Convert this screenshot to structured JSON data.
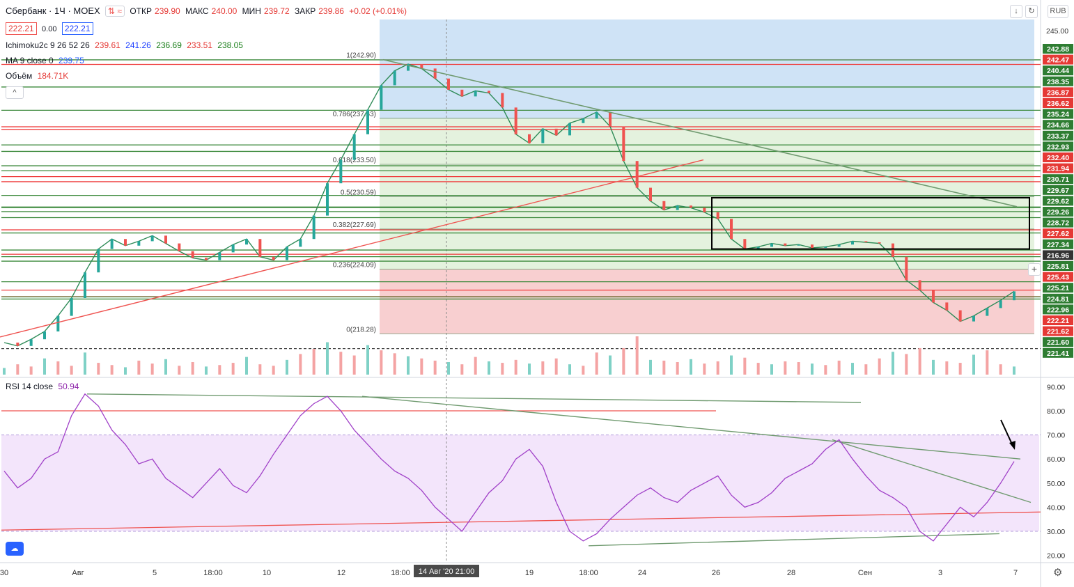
{
  "header": {
    "symbol": "Сбербанк · 1Ч · MOEX",
    "open_label": "ОТКР",
    "open": "239.90",
    "high_label": "МАКС",
    "high": "240.00",
    "low_label": "МИН",
    "low": "239.72",
    "close_label": "ЗАКР",
    "close": "239.86",
    "change": "+0.02 (+0.01%)",
    "bid": "222.21",
    "spread": "0.00",
    "ask": "222.21",
    "currency": "RUB"
  },
  "indicators": {
    "ichimoku_label": "Ichimoku2c 9 26 52 26",
    "ichimoku_values": [
      "239.61",
      "241.26",
      "236.69",
      "233.51",
      "238.05"
    ],
    "ma_label": "MA 9 close 0",
    "ma_value": "239.75",
    "volume_label": "Объём",
    "volume_value": "184.71K",
    "rsi_label": "RSI 14 close",
    "rsi_value": "50.94"
  },
  "colors": {
    "red_line": "#ef3b3b",
    "green_line": "#3d8a3d",
    "black_line": "#111111",
    "fib_up": "#cfe3f6",
    "fib_down": "#f8cfd0",
    "fib_green": "#dff0d8",
    "rsi_band": "#f3e5fb",
    "rsi_line": "#a040c8",
    "label_red": "#e53935",
    "label_green": "#2e7d32"
  },
  "chart_data": {
    "type": "line",
    "title": "Сбербанк · 1Ч · MOEX",
    "x_ticks": [
      "30",
      "Авг",
      "5",
      "18:00",
      "10",
      "12",
      "18:00",
      "14 Авг '20  21:00",
      "19",
      "18:00",
      "24",
      "26",
      "28",
      "Сен",
      "3",
      "7"
    ],
    "price_axis_ticks": [
      "245.00"
    ],
    "ylim_price": [
      214.5,
      246.5
    ],
    "price_levels": [
      {
        "v": "242.88",
        "c": "green"
      },
      {
        "v": "242.47",
        "c": "red"
      },
      {
        "v": "240.44",
        "c": "green"
      },
      {
        "v": "238.35",
        "c": "green"
      },
      {
        "v": "236.87",
        "c": "red"
      },
      {
        "v": "236.62",
        "c": "red"
      },
      {
        "v": "235.24",
        "c": "green"
      },
      {
        "v": "234.66",
        "c": "green"
      },
      {
        "v": "233.37",
        "c": "green"
      },
      {
        "v": "232.93",
        "c": "green"
      },
      {
        "v": "232.40",
        "c": "red"
      },
      {
        "v": "231.94",
        "c": "red"
      },
      {
        "v": "230.71",
        "c": "green"
      },
      {
        "v": "229.67",
        "c": "green"
      },
      {
        "v": "229.62",
        "c": "green"
      },
      {
        "v": "229.26",
        "c": "green"
      },
      {
        "v": "228.72",
        "c": "green"
      },
      {
        "v": "227.62",
        "c": "red"
      },
      {
        "v": "227.34",
        "c": "green"
      },
      {
        "v": "216.96",
        "c": "dark"
      },
      {
        "v": "225.81",
        "c": "green"
      },
      {
        "v": "225.43",
        "c": "red"
      },
      {
        "v": "225.21",
        "c": "green"
      },
      {
        "v": "224.81",
        "c": "green"
      },
      {
        "v": "222.96",
        "c": "green"
      },
      {
        "v": "222.21",
        "c": "red"
      },
      {
        "v": "221.62",
        "c": "red"
      },
      {
        "v": "221.60",
        "c": "green"
      },
      {
        "v": "221.41",
        "c": "green"
      }
    ],
    "fib_levels": [
      {
        "ratio": "1",
        "value": "242.90"
      },
      {
        "ratio": "0.786",
        "value": "237.63"
      },
      {
        "ratio": "0.618",
        "value": "233.50"
      },
      {
        "ratio": "0.5",
        "value": "230.59"
      },
      {
        "ratio": "0.382",
        "value": "227.69"
      },
      {
        "ratio": "0.236",
        "value": "224.09"
      },
      {
        "ratio": "0",
        "value": "218.28"
      }
    ],
    "price_series": [
      {
        "name": "Сбербанк",
        "values": [
          217.5,
          217.2,
          217.8,
          218.5,
          219.9,
          221.5,
          223.8,
          225.9,
          226.8,
          226.2,
          226.6,
          227.1,
          226.4,
          225.7,
          225.1,
          224.9,
          225.6,
          226.3,
          226.8,
          225.2,
          224.9,
          226.1,
          226.8,
          228.9,
          231.8,
          233.9,
          236.2,
          238.4,
          240.6,
          241.9,
          242.5,
          242.1,
          241.2,
          240.2,
          239.6,
          240.1,
          239.9,
          238.6,
          236.2,
          235.4,
          236.7,
          236.1,
          237.2,
          237.6,
          238.2,
          236.9,
          233.8,
          231.4,
          230.2,
          229.4,
          229.8,
          229.6,
          229.2,
          228.6,
          226.8,
          225.9,
          226.1,
          226.4,
          226.2,
          226.3,
          226.0,
          226.1,
          226.3,
          226.6,
          226.5,
          226.4,
          225.2,
          223.1,
          222.2,
          221.1,
          220.4,
          219.4,
          219.9,
          220.6,
          221.3,
          222.1
        ]
      }
    ],
    "volume": [
      9,
      14,
      11,
      22,
      18,
      12,
      30,
      16,
      13,
      10,
      19,
      15,
      21,
      12,
      17,
      11,
      13,
      16,
      24,
      14,
      12,
      20,
      28,
      35,
      44,
      31,
      26,
      40,
      33,
      29,
      25,
      22,
      19,
      17,
      14,
      24,
      18,
      16,
      20,
      15,
      18,
      22,
      14,
      12,
      30,
      26,
      36,
      52,
      20,
      19,
      17,
      21,
      15,
      18,
      26,
      23,
      16,
      14,
      18,
      17,
      15,
      13,
      19,
      16,
      14,
      22,
      31,
      28,
      36,
      20,
      18,
      16,
      27,
      33,
      14,
      11
    ],
    "rsi": [
      55,
      48,
      52,
      60,
      63,
      78,
      87,
      82,
      72,
      66,
      58,
      60,
      52,
      48,
      44,
      50,
      56,
      49,
      46,
      53,
      62,
      70,
      78,
      83,
      86,
      80,
      72,
      66,
      60,
      55,
      52,
      47,
      40,
      35,
      30,
      38,
      46,
      51,
      60,
      64,
      57,
      42,
      30,
      26,
      29,
      35,
      40,
      45,
      48,
      44,
      42,
      47,
      50,
      53,
      45,
      40,
      42,
      46,
      52,
      55,
      58,
      64,
      68,
      60,
      53,
      47,
      44,
      40,
      30,
      26,
      33,
      40,
      36,
      42,
      50,
      59
    ],
    "ylim_rsi": [
      17,
      93
    ],
    "rsi_ticks": [
      "90.00",
      "80.00",
      "70.00",
      "60.00",
      "50.00",
      "40.00",
      "30.00",
      "20.00"
    ]
  }
}
